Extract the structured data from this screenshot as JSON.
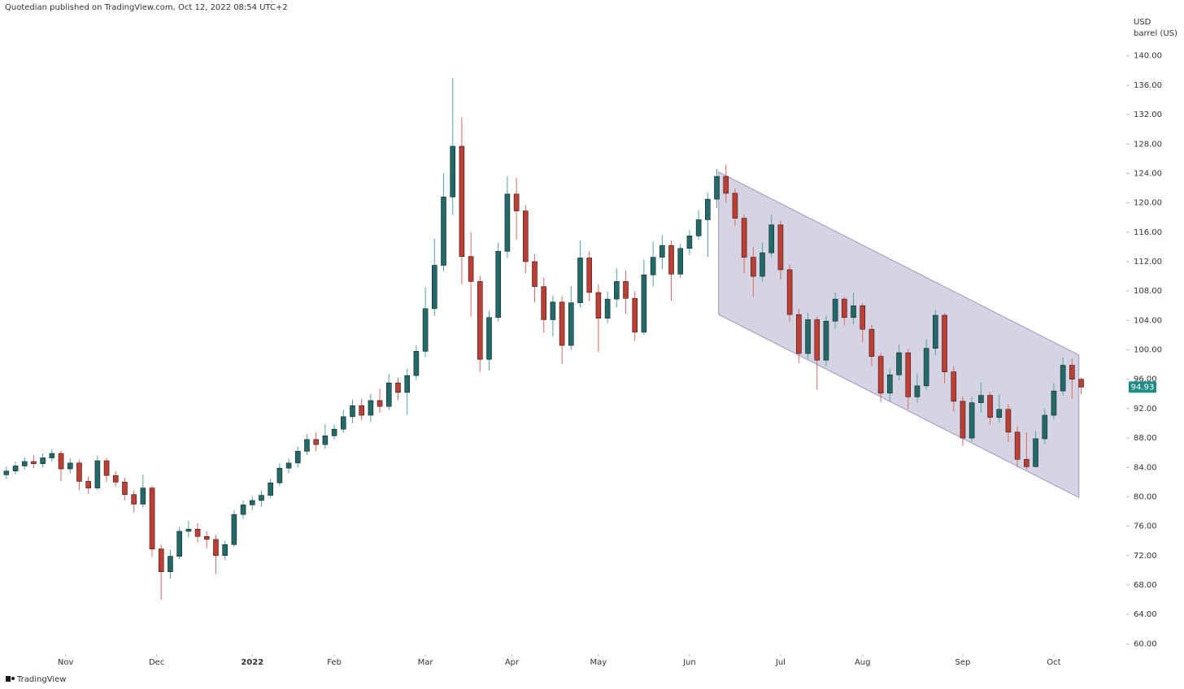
{
  "header": "Quotedian published on TradingView.com, Oct 12, 2022 08:54 UTC+2",
  "footer": "TradingView",
  "chart_data": {
    "type": "candlestick",
    "y_unit": "USD",
    "y_unit_sub": "barrel (US)",
    "up_color": "#1f6b6a",
    "up_wick": "#4aa5a1",
    "down_color": "#c43b31",
    "down_wick": "#e2645a",
    "last_price_color": "#1f8c86",
    "channel_color": "#b8b8d2",
    "xlim": [
      -1.4,
      245.9
    ],
    "ylim": [
      58.6,
      147.6
    ],
    "xticks": [
      {
        "value": 13,
        "label": "Nov"
      },
      {
        "value": 33,
        "label": "Dec"
      },
      {
        "value": 54,
        "label": "2022"
      },
      {
        "value": 72,
        "label": "Feb"
      },
      {
        "value": 92,
        "label": "Mar"
      },
      {
        "value": 111,
        "label": "Apr"
      },
      {
        "value": 130,
        "label": "May"
      },
      {
        "value": 150,
        "label": "Jun"
      },
      {
        "value": 170,
        "label": "Jul"
      },
      {
        "value": 188,
        "label": "Aug"
      },
      {
        "value": 210,
        "label": "Sep"
      },
      {
        "value": 230,
        "label": "Oct"
      }
    ],
    "yticks": [
      {
        "value": 60,
        "label": "60.00"
      },
      {
        "value": 64,
        "label": "64.00"
      },
      {
        "value": 68,
        "label": "68.00"
      },
      {
        "value": 72,
        "label": "72.00"
      },
      {
        "value": 76,
        "label": "76.00"
      },
      {
        "value": 80,
        "label": "80.00"
      },
      {
        "value": 84,
        "label": "84.00"
      },
      {
        "value": 88,
        "label": "88.00"
      },
      {
        "value": 92,
        "label": "92.00"
      },
      {
        "value": 96,
        "label": "96.00"
      },
      {
        "value": 100,
        "label": "100.00"
      },
      {
        "value": 104,
        "label": "104.00"
      },
      {
        "value": 108,
        "label": "108.00"
      },
      {
        "value": 112,
        "label": "112.00"
      },
      {
        "value": 116,
        "label": "116.00"
      },
      {
        "value": 120,
        "label": "120.00"
      },
      {
        "value": 124,
        "label": "124.00"
      },
      {
        "value": 128,
        "label": "128.00"
      },
      {
        "value": 132,
        "label": "132.00"
      },
      {
        "value": 136,
        "label": "136.00"
      },
      {
        "value": 140,
        "label": "140.00"
      }
    ],
    "channel": {
      "x": [
        156.4,
        235.5
      ],
      "upper": [
        124.2,
        99.3
      ],
      "lower": [
        104.8,
        79.9
      ]
    },
    "x": [
      0,
      2,
      4,
      6,
      8,
      10,
      12,
      14,
      16,
      18,
      20,
      22,
      24,
      26,
      28,
      30,
      32,
      34,
      36,
      38,
      40,
      42,
      44,
      46,
      48,
      50,
      52,
      54,
      56,
      58,
      60,
      62,
      64,
      66,
      68,
      70,
      72,
      74,
      76,
      78,
      80,
      82,
      84,
      86,
      88,
      90,
      92,
      94,
      96,
      98,
      100,
      102,
      104,
      106,
      108,
      110,
      112,
      114,
      116,
      118,
      120,
      122,
      124,
      126,
      128,
      130,
      132,
      134,
      136,
      138,
      140,
      142,
      144,
      146,
      148,
      150,
      152,
      154,
      156,
      158,
      160,
      162,
      164,
      166,
      168,
      170,
      172,
      174,
      176,
      178,
      180,
      182,
      184,
      186,
      188,
      190,
      192,
      194,
      196,
      198,
      200,
      202,
      204,
      206,
      208,
      210,
      212,
      214,
      216,
      218,
      220,
      222,
      224,
      226,
      228,
      230,
      232,
      234,
      236
    ],
    "open": [
      83.0,
      83.5,
      84.2,
      84.8,
      84.5,
      85.3,
      85.9,
      83.8,
      84.6,
      82.1,
      81.2,
      84.9,
      82.9,
      82.0,
      80.3,
      79.0,
      81.2,
      72.9,
      69.8,
      71.9,
      75.3,
      75.6,
      74.6,
      74.2,
      72.0,
      73.5,
      77.6,
      78.9,
      79.5,
      80.2,
      81.9,
      83.9,
      84.6,
      86.2,
      87.8,
      87.1,
      88.3,
      89.2,
      90.9,
      92.4,
      91.1,
      93.1,
      92.3,
      95.5,
      94.2,
      96.5,
      99.8,
      105.6,
      111.5,
      120.8,
      127.7,
      112.7,
      109.3,
      98.7,
      104.4,
      113.4,
      121.2,
      118.9,
      112.0,
      108.6,
      104.1,
      106.5,
      100.6,
      106.4,
      112.5,
      107.8,
      104.3,
      106.9,
      109.3,
      107.0,
      102.4,
      110.2,
      112.6,
      114.2,
      110.3,
      113.8,
      115.5,
      117.7,
      120.5,
      123.6,
      121.3,
      117.9,
      112.6,
      110.0,
      113.2,
      117.0,
      110.9,
      104.8,
      99.5,
      104.1,
      98.6,
      103.9,
      106.9,
      104.4,
      106.0,
      102.8,
      99.1,
      94.1,
      96.6,
      99.6,
      93.6,
      95.1,
      100.2,
      104.7,
      97.0,
      93.0,
      88.0,
      92.8,
      93.8,
      90.8,
      91.9,
      88.8,
      85.1,
      84.1,
      87.9,
      91.1,
      94.4,
      97.9,
      96.0
    ],
    "high": [
      84.1,
      84.8,
      85.4,
      85.6,
      85.9,
      86.5,
      86.3,
      85.3,
      85.0,
      82.8,
      85.6,
      85.3,
      83.5,
      82.6,
      80.9,
      83.0,
      81.5,
      73.5,
      72.8,
      75.9,
      76.7,
      76.4,
      75.3,
      74.8,
      74.0,
      78.2,
      79.5,
      80.1,
      80.9,
      82.4,
      84.5,
      85.2,
      86.8,
      88.5,
      88.8,
      89.9,
      89.8,
      91.8,
      93.2,
      93.4,
      94.0,
      94.7,
      96.7,
      96.2,
      97.4,
      100.6,
      108.5,
      115.1,
      124.0,
      137.0,
      131.6,
      116.0,
      110.1,
      105.3,
      114.6,
      123.6,
      123.4,
      119.7,
      113.0,
      109.8,
      107.4,
      107.3,
      108.7,
      114.9,
      113.4,
      108.9,
      108.0,
      111.1,
      110.8,
      108.0,
      112.3,
      114.7,
      115.6,
      114.9,
      114.4,
      116.3,
      119.0,
      121.4,
      124.6,
      125.2,
      122.0,
      118.4,
      114.0,
      114.6,
      118.4,
      117.6,
      111.6,
      105.6,
      105.0,
      104.5,
      104.6,
      107.8,
      107.2,
      107.8,
      106.4,
      103.4,
      99.6,
      97.4,
      100.7,
      100.1,
      96.7,
      101.4,
      105.4,
      105.0,
      97.8,
      93.7,
      93.6,
      95.6,
      94.3,
      93.9,
      92.6,
      89.6,
      88.8,
      89.0,
      92.0,
      95.5,
      99.0,
      98.8,
      96.2
    ],
    "low": [
      82.4,
      83.0,
      83.7,
      83.9,
      84.0,
      84.8,
      82.1,
      83.2,
      80.9,
      80.4,
      80.9,
      82.0,
      81.4,
      79.5,
      77.9,
      78.5,
      71.8,
      66.0,
      68.9,
      71.5,
      74.5,
      73.8,
      73.0,
      69.5,
      71.4,
      73.2,
      77.0,
      78.2,
      78.7,
      79.8,
      81.5,
      83.2,
      84.0,
      85.7,
      86.2,
      86.5,
      87.8,
      88.7,
      90.0,
      90.4,
      90.2,
      91.4,
      91.8,
      93.1,
      91.2,
      95.9,
      99.0,
      104.6,
      110.7,
      118.3,
      108.9,
      104.5,
      97.0,
      97.2,
      103.8,
      112.5,
      115.0,
      110.4,
      106.5,
      102.3,
      101.8,
      98.1,
      100.0,
      105.8,
      106.6,
      99.7,
      103.6,
      105.8,
      104.9,
      101.2,
      102.0,
      108.6,
      111.0,
      106.7,
      109.8,
      112.9,
      115.0,
      112.6,
      119.3,
      120.0,
      116.8,
      110.4,
      107.2,
      109.3,
      112.6,
      109.5,
      103.8,
      98.2,
      98.8,
      94.6,
      97.8,
      102.9,
      103.3,
      103.5,
      101.0,
      97.8,
      92.9,
      93.0,
      95.9,
      91.9,
      92.8,
      94.5,
      99.3,
      95.4,
      91.6,
      86.9,
      87.5,
      91.4,
      89.8,
      90.1,
      87.4,
      84.0,
      83.7,
      84.0,
      87.2,
      90.6,
      93.8,
      93.3,
      93.9
    ],
    "close": [
      83.5,
      84.2,
      84.8,
      84.5,
      85.3,
      85.9,
      83.8,
      84.6,
      82.1,
      81.2,
      84.9,
      82.9,
      82.0,
      80.3,
      79.0,
      81.2,
      72.9,
      69.8,
      71.9,
      75.3,
      75.6,
      74.6,
      74.2,
      72.0,
      73.5,
      77.6,
      78.9,
      79.5,
      80.2,
      81.9,
      83.9,
      84.6,
      86.2,
      87.8,
      87.1,
      88.3,
      89.2,
      90.9,
      92.4,
      91.1,
      93.1,
      92.3,
      95.5,
      94.2,
      96.5,
      99.8,
      105.6,
      111.5,
      120.8,
      127.7,
      112.7,
      109.3,
      98.7,
      104.4,
      113.4,
      121.2,
      118.9,
      112.0,
      108.6,
      104.1,
      106.5,
      100.6,
      106.4,
      112.5,
      107.8,
      104.3,
      106.9,
      109.3,
      107.0,
      102.4,
      110.2,
      112.6,
      114.2,
      110.3,
      113.8,
      115.5,
      117.7,
      120.5,
      123.6,
      121.3,
      117.9,
      112.6,
      110.0,
      113.2,
      117.0,
      110.9,
      104.8,
      99.5,
      104.1,
      98.6,
      103.9,
      106.9,
      104.4,
      106.0,
      102.8,
      99.1,
      94.1,
      96.6,
      99.6,
      93.6,
      95.1,
      100.2,
      104.7,
      97.0,
      93.0,
      88.0,
      92.8,
      93.8,
      90.8,
      91.9,
      88.8,
      85.1,
      84.1,
      87.9,
      91.1,
      94.4,
      97.9,
      96.0,
      94.93
    ]
  }
}
